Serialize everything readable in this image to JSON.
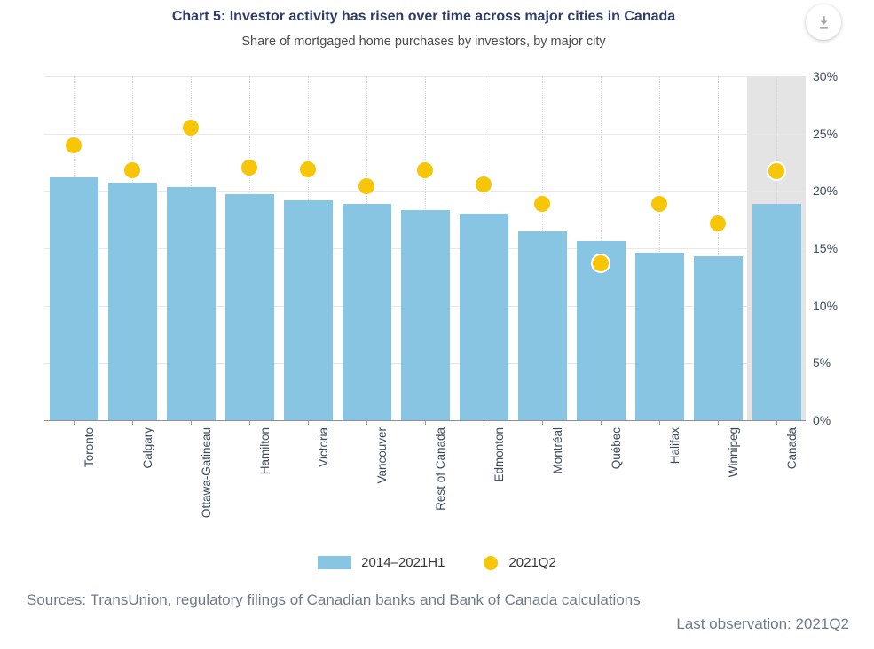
{
  "header": {
    "title": "Chart 5: Investor activity has risen over time across major cities in Canada",
    "subtitle": "Share of mortgaged home purchases by investors, by major city"
  },
  "toolbar": {
    "download_icon": "download-icon"
  },
  "chart_data": {
    "type": "bar",
    "title": "Chart 5: Investor activity has risen over time across major cities in Canada",
    "subtitle": "Share of mortgaged home purchases by investors, by major city",
    "categories": [
      "Toronto",
      "Calgary",
      "Ottawa-Gatineau",
      "Hamilton",
      "Victoria",
      "Vancouver",
      "Rest of Canada",
      "Edmonton",
      "Montréal",
      "Québec",
      "Halifax",
      "Winnipeg",
      "Canada"
    ],
    "series": [
      {
        "name": "2014–2021H1",
        "kind": "bar",
        "color": "#87C5E2",
        "values": [
          21.2,
          20.7,
          20.3,
          19.7,
          19.2,
          18.9,
          18.3,
          18.0,
          16.5,
          15.6,
          14.6,
          14.3,
          18.9
        ]
      },
      {
        "name": "2021Q2",
        "kind": "point",
        "color": "#F7C608",
        "values": [
          24.0,
          21.8,
          25.5,
          22.0,
          21.9,
          20.4,
          21.8,
          20.6,
          18.9,
          13.7,
          18.9,
          17.2,
          21.7
        ]
      }
    ],
    "ylim": [
      0,
      30
    ],
    "yticks": [
      {
        "value": 0,
        "label": "0%"
      },
      {
        "value": 5,
        "label": "5%"
      },
      {
        "value": 10,
        "label": "10%"
      },
      {
        "value": 15,
        "label": "15%"
      },
      {
        "value": 20,
        "label": "20%"
      },
      {
        "value": 25,
        "label": "25%"
      },
      {
        "value": 30,
        "label": "30%"
      }
    ],
    "y_axis_side": "right",
    "grid": true,
    "legend_position": "bottom",
    "highlight_category": "Canada",
    "highlight_color": "#e4e4e4"
  },
  "legend": [
    {
      "label": "2014–2021H1",
      "swatch": "bar"
    },
    {
      "label": "2021Q2",
      "swatch": "dot"
    }
  ],
  "footer": {
    "sources": "Sources: TransUnion, regulatory filings of Canadian banks and Bank of Canada calculations",
    "last_observation": "Last observation: 2021Q2"
  }
}
